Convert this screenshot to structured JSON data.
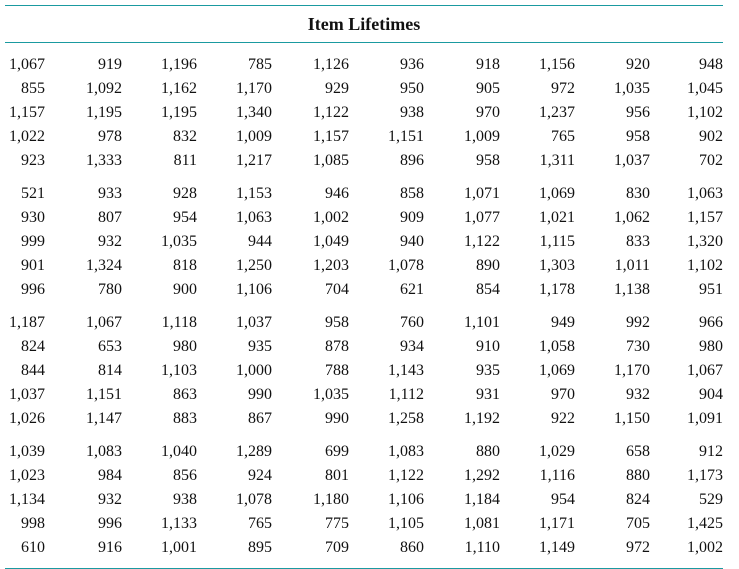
{
  "title": "Item Lifetimes",
  "blocks": [
    [
      [
        "1,067",
        "919",
        "1,196",
        "785",
        "1,126",
        "936",
        "918",
        "1,156",
        "920",
        "948"
      ],
      [
        "855",
        "1,092",
        "1,162",
        "1,170",
        "929",
        "950",
        "905",
        "972",
        "1,035",
        "1,045"
      ],
      [
        "1,157",
        "1,195",
        "1,195",
        "1,340",
        "1,122",
        "938",
        "970",
        "1,237",
        "956",
        "1,102"
      ],
      [
        "1,022",
        "978",
        "832",
        "1,009",
        "1,157",
        "1,151",
        "1,009",
        "765",
        "958",
        "902"
      ],
      [
        "923",
        "1,333",
        "811",
        "1,217",
        "1,085",
        "896",
        "958",
        "1,311",
        "1,037",
        "702"
      ]
    ],
    [
      [
        "521",
        "933",
        "928",
        "1,153",
        "946",
        "858",
        "1,071",
        "1,069",
        "830",
        "1,063"
      ],
      [
        "930",
        "807",
        "954",
        "1,063",
        "1,002",
        "909",
        "1,077",
        "1,021",
        "1,062",
        "1,157"
      ],
      [
        "999",
        "932",
        "1,035",
        "944",
        "1,049",
        "940",
        "1,122",
        "1,115",
        "833",
        "1,320"
      ],
      [
        "901",
        "1,324",
        "818",
        "1,250",
        "1,203",
        "1,078",
        "890",
        "1,303",
        "1,011",
        "1,102"
      ],
      [
        "996",
        "780",
        "900",
        "1,106",
        "704",
        "621",
        "854",
        "1,178",
        "1,138",
        "951"
      ]
    ],
    [
      [
        "1,187",
        "1,067",
        "1,118",
        "1,037",
        "958",
        "760",
        "1,101",
        "949",
        "992",
        "966"
      ],
      [
        "824",
        "653",
        "980",
        "935",
        "878",
        "934",
        "910",
        "1,058",
        "730",
        "980"
      ],
      [
        "844",
        "814",
        "1,103",
        "1,000",
        "788",
        "1,143",
        "935",
        "1,069",
        "1,170",
        "1,067"
      ],
      [
        "1,037",
        "1,151",
        "863",
        "990",
        "1,035",
        "1,112",
        "931",
        "970",
        "932",
        "904"
      ],
      [
        "1,026",
        "1,147",
        "883",
        "867",
        "990",
        "1,258",
        "1,192",
        "922",
        "1,150",
        "1,091"
      ]
    ],
    [
      [
        "1,039",
        "1,083",
        "1,040",
        "1,289",
        "699",
        "1,083",
        "880",
        "1,029",
        "658",
        "912"
      ],
      [
        "1,023",
        "984",
        "856",
        "924",
        "801",
        "1,122",
        "1,292",
        "1,116",
        "880",
        "1,173"
      ],
      [
        "1,134",
        "932",
        "938",
        "1,078",
        "1,180",
        "1,106",
        "1,184",
        "954",
        "824",
        "529"
      ],
      [
        "998",
        "996",
        "1,133",
        "765",
        "775",
        "1,105",
        "1,081",
        "1,171",
        "705",
        "1,425"
      ],
      [
        "610",
        "916",
        "1,001",
        "895",
        "709",
        "860",
        "1,110",
        "1,149",
        "972",
        "1,002"
      ]
    ]
  ]
}
